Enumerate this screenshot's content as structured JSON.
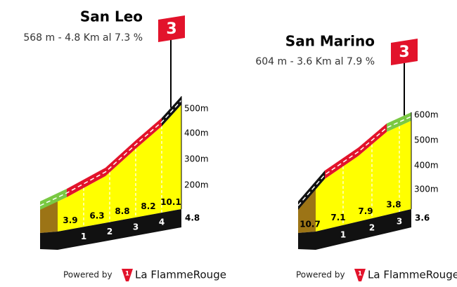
{
  "profiles": [
    {
      "title": "San Leo",
      "subtitle": "568 m - 4.8 Km al 7.3 %",
      "category": 3,
      "altitude_labels": [
        "500m",
        "400m",
        "300m",
        "200m"
      ],
      "gradients": [
        3.9,
        6.3,
        8.8,
        8.2,
        10.1
      ],
      "km_labels": [
        1,
        2,
        3,
        4
      ],
      "distance": 4.8
    },
    {
      "title": "San Marino",
      "subtitle": "604 m - 3.6 Km al 7.9 %",
      "category": 3,
      "altitude_labels": [
        "600m",
        "500m",
        "400m",
        "300m"
      ],
      "gradients": [
        10.7,
        7.1,
        7.9,
        3.8
      ],
      "km_labels": [
        1,
        2,
        3
      ],
      "distance": 3.6
    }
  ],
  "footer": [
    {
      "powered_by": "Powered by",
      "brand": "La FlammeRouge"
    },
    {
      "powered_by": "Powered by",
      "brand": "La FlammeRouge"
    }
  ]
}
